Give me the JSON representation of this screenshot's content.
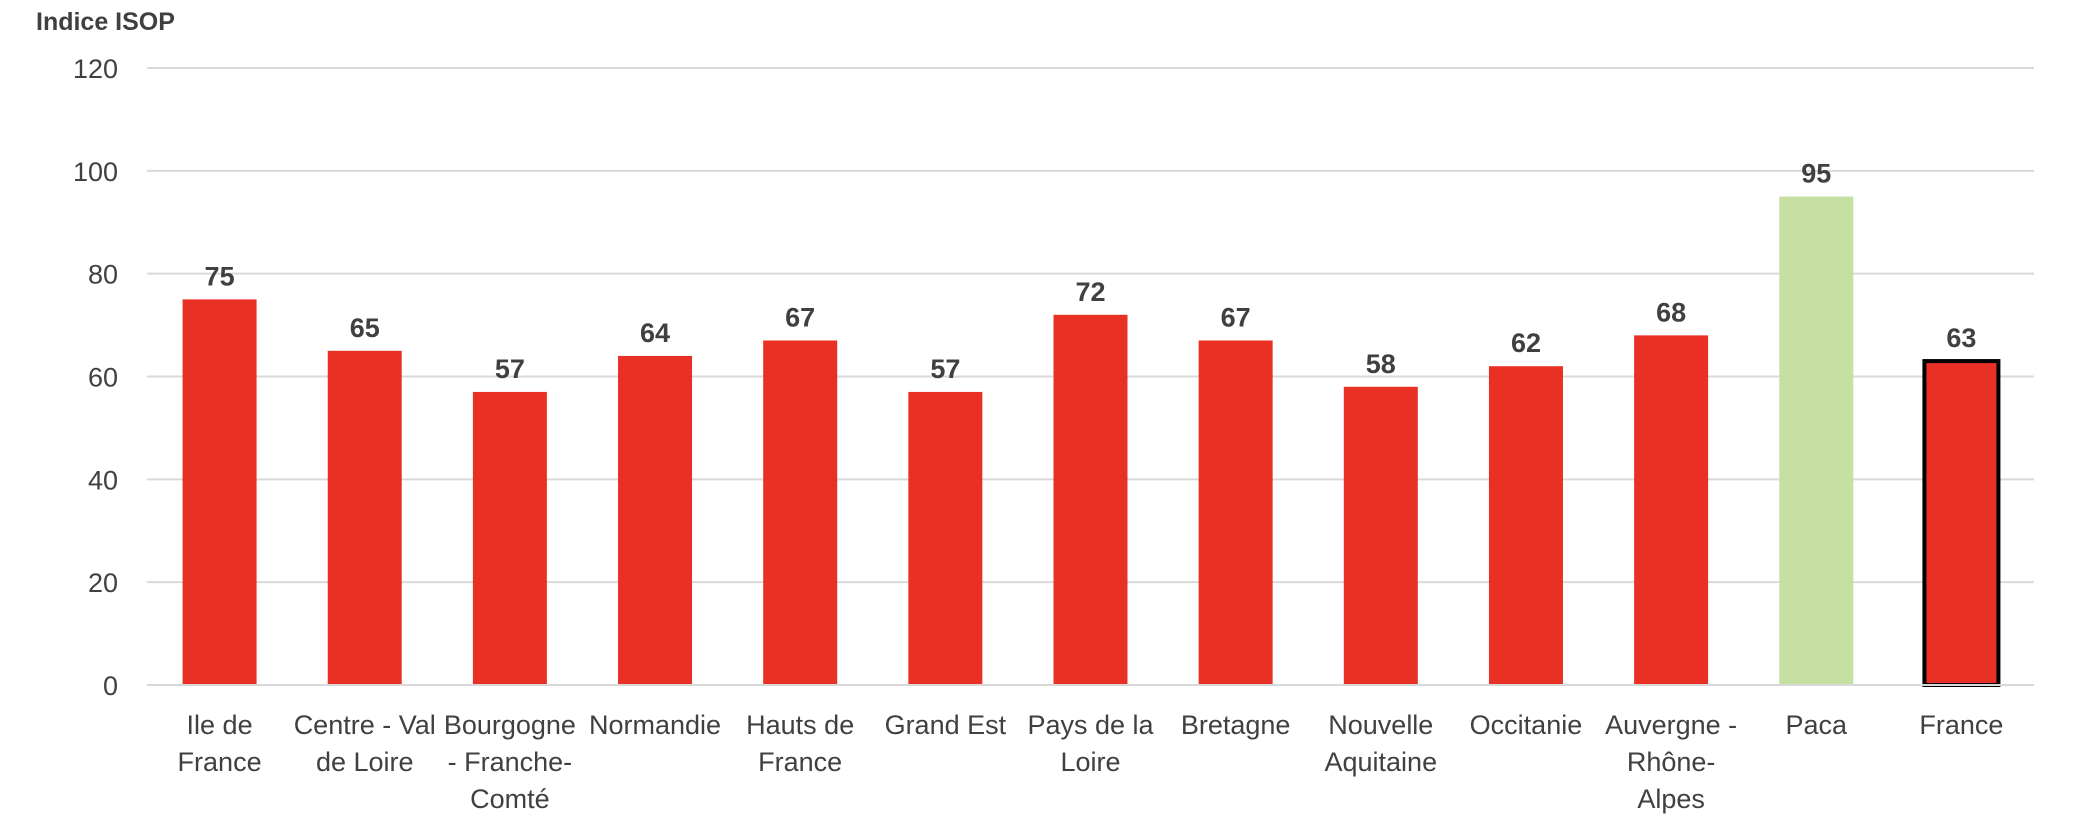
{
  "chart_data": {
    "type": "bar",
    "ylabel": "Indice ISOP",
    "xlabel": "",
    "ylim": [
      0,
      120
    ],
    "yticks": [
      0,
      20,
      40,
      60,
      80,
      100,
      120
    ],
    "grid": true,
    "legend": "none",
    "categories": [
      [
        "Ile de",
        "France"
      ],
      [
        "Centre - Val",
        "de Loire"
      ],
      [
        "Bourgogne",
        "- Franche-",
        "Comté"
      ],
      [
        "Normandie"
      ],
      [
        "Hauts de",
        "France"
      ],
      [
        "Grand Est"
      ],
      [
        "Pays de la",
        "Loire"
      ],
      [
        "Bretagne"
      ],
      [
        "Nouvelle",
        "Aquitaine"
      ],
      [
        "Occitanie"
      ],
      [
        "Auvergne -",
        "Rhône-",
        "Alpes"
      ],
      [
        "Paca"
      ],
      [
        "France"
      ]
    ],
    "values": [
      75,
      65,
      57,
      64,
      67,
      57,
      72,
      67,
      58,
      62,
      68,
      95,
      63
    ],
    "bar_colors": [
      "#e93024",
      "#e93024",
      "#e93024",
      "#e93024",
      "#e93024",
      "#e93024",
      "#e93024",
      "#e93024",
      "#e93024",
      "#e93024",
      "#e93024",
      "#c5e0a0",
      "#e93024"
    ],
    "highlight_outline": {
      "category_index": 12,
      "color": "#000000"
    },
    "colors": {
      "bar": "#e93024",
      "highlight": "#c5e0a0",
      "text": "#404040",
      "grid": "#d9d9d9"
    }
  }
}
